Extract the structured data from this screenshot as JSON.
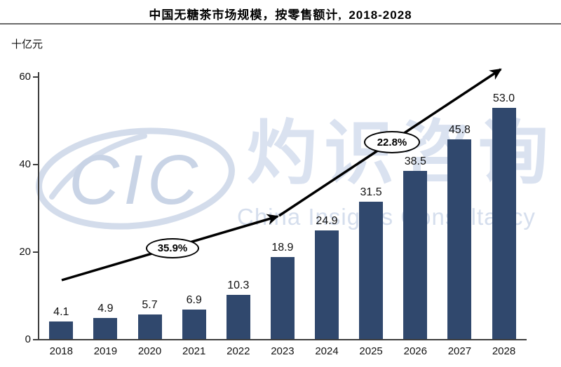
{
  "title": {
    "cn": "中国无糖茶市场规模，按零售额计,",
    "range": "2018-2028"
  },
  "y_axis": {
    "unit": "十亿元"
  },
  "watermark": {
    "logo": "CIC",
    "cn": "灼识咨询",
    "en": "China Insights Consultancy"
  },
  "chart_data": {
    "type": "bar",
    "title": "中国无糖茶市场规模，按零售额计, 2018-2028",
    "ylabel": "十亿元",
    "xlabel": "",
    "categories": [
      "2018",
      "2019",
      "2020",
      "2021",
      "2022",
      "2023",
      "2024",
      "2025",
      "2026",
      "2027",
      "2028"
    ],
    "values": [
      4.1,
      4.9,
      5.7,
      6.9,
      10.3,
      18.9,
      24.9,
      31.5,
      38.5,
      45.8,
      53.0
    ],
    "ylim": [
      0,
      60
    ],
    "yticks": [
      0,
      20,
      40,
      60
    ],
    "grid": false,
    "legend": null,
    "annotations": [
      {
        "label": "35.9%",
        "from": "2018",
        "to": "2023",
        "kind": "cagr-arrow"
      },
      {
        "label": "22.8%",
        "from": "2023",
        "to": "2028",
        "kind": "cagr-arrow"
      }
    ],
    "colors": {
      "bar": "#30486D",
      "arrow": "#000000",
      "axis": "#3D3D3D",
      "watermark": "#D7DFEE"
    }
  }
}
